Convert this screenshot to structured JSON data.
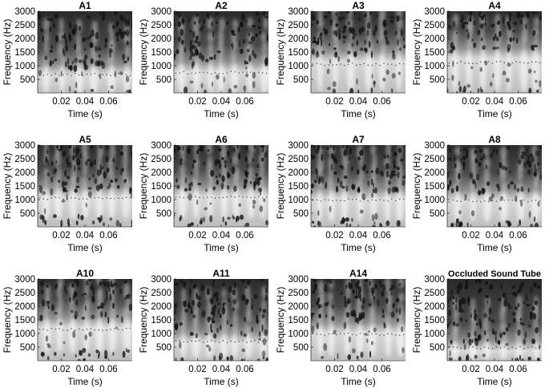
{
  "chart_data": {
    "type": "heatmap",
    "shared_axes": {
      "xlabel": "Time (s)",
      "ylabel": "Frequency (Hz)",
      "xlim": [
        0,
        0.08
      ],
      "ylim": [
        0,
        3000
      ],
      "xticks": [
        0.02,
        0.04,
        0.06
      ],
      "xtick_labels": [
        "0.02",
        "0.04",
        "0.06"
      ],
      "yticks": [
        500,
        1000,
        1500,
        2000,
        2500,
        3000
      ],
      "ytick_labels": [
        "500",
        "1000",
        "1500",
        "2000",
        "2500",
        "3000"
      ],
      "colormap": "grayscale",
      "grid": false
    },
    "panels": [
      {
        "title": "A1",
        "bright_band_hz": [
          100,
          900
        ],
        "pulse_count": 6
      },
      {
        "title": "A2",
        "bright_band_hz": [
          100,
          1000
        ],
        "pulse_count": 7
      },
      {
        "title": "A3",
        "bright_band_hz": [
          150,
          1400
        ],
        "pulse_count": 6
      },
      {
        "title": "A4",
        "bright_band_hz": [
          150,
          1500
        ],
        "pulse_count": 7
      },
      {
        "title": "A5",
        "bright_band_hz": [
          400,
          1300
        ],
        "pulse_count": 7
      },
      {
        "title": "A6",
        "bright_band_hz": [
          400,
          1350
        ],
        "pulse_count": 7
      },
      {
        "title": "A7",
        "bright_band_hz": [
          300,
          1250
        ],
        "pulse_count": 7
      },
      {
        "title": "A8",
        "bright_band_hz": [
          300,
          1200
        ],
        "pulse_count": 6
      },
      {
        "title": "A10",
        "bright_band_hz": [
          400,
          1450
        ],
        "pulse_count": 7
      },
      {
        "title": "A11",
        "bright_band_hz": [
          200,
          900
        ],
        "pulse_count": 7
      },
      {
        "title": "A14",
        "bright_band_hz": [
          250,
          1250
        ],
        "pulse_count": 7
      },
      {
        "title": "Occluded Sound Tube",
        "bright_band_hz": [
          150,
          600
        ],
        "pulse_count": 6
      }
    ]
  }
}
